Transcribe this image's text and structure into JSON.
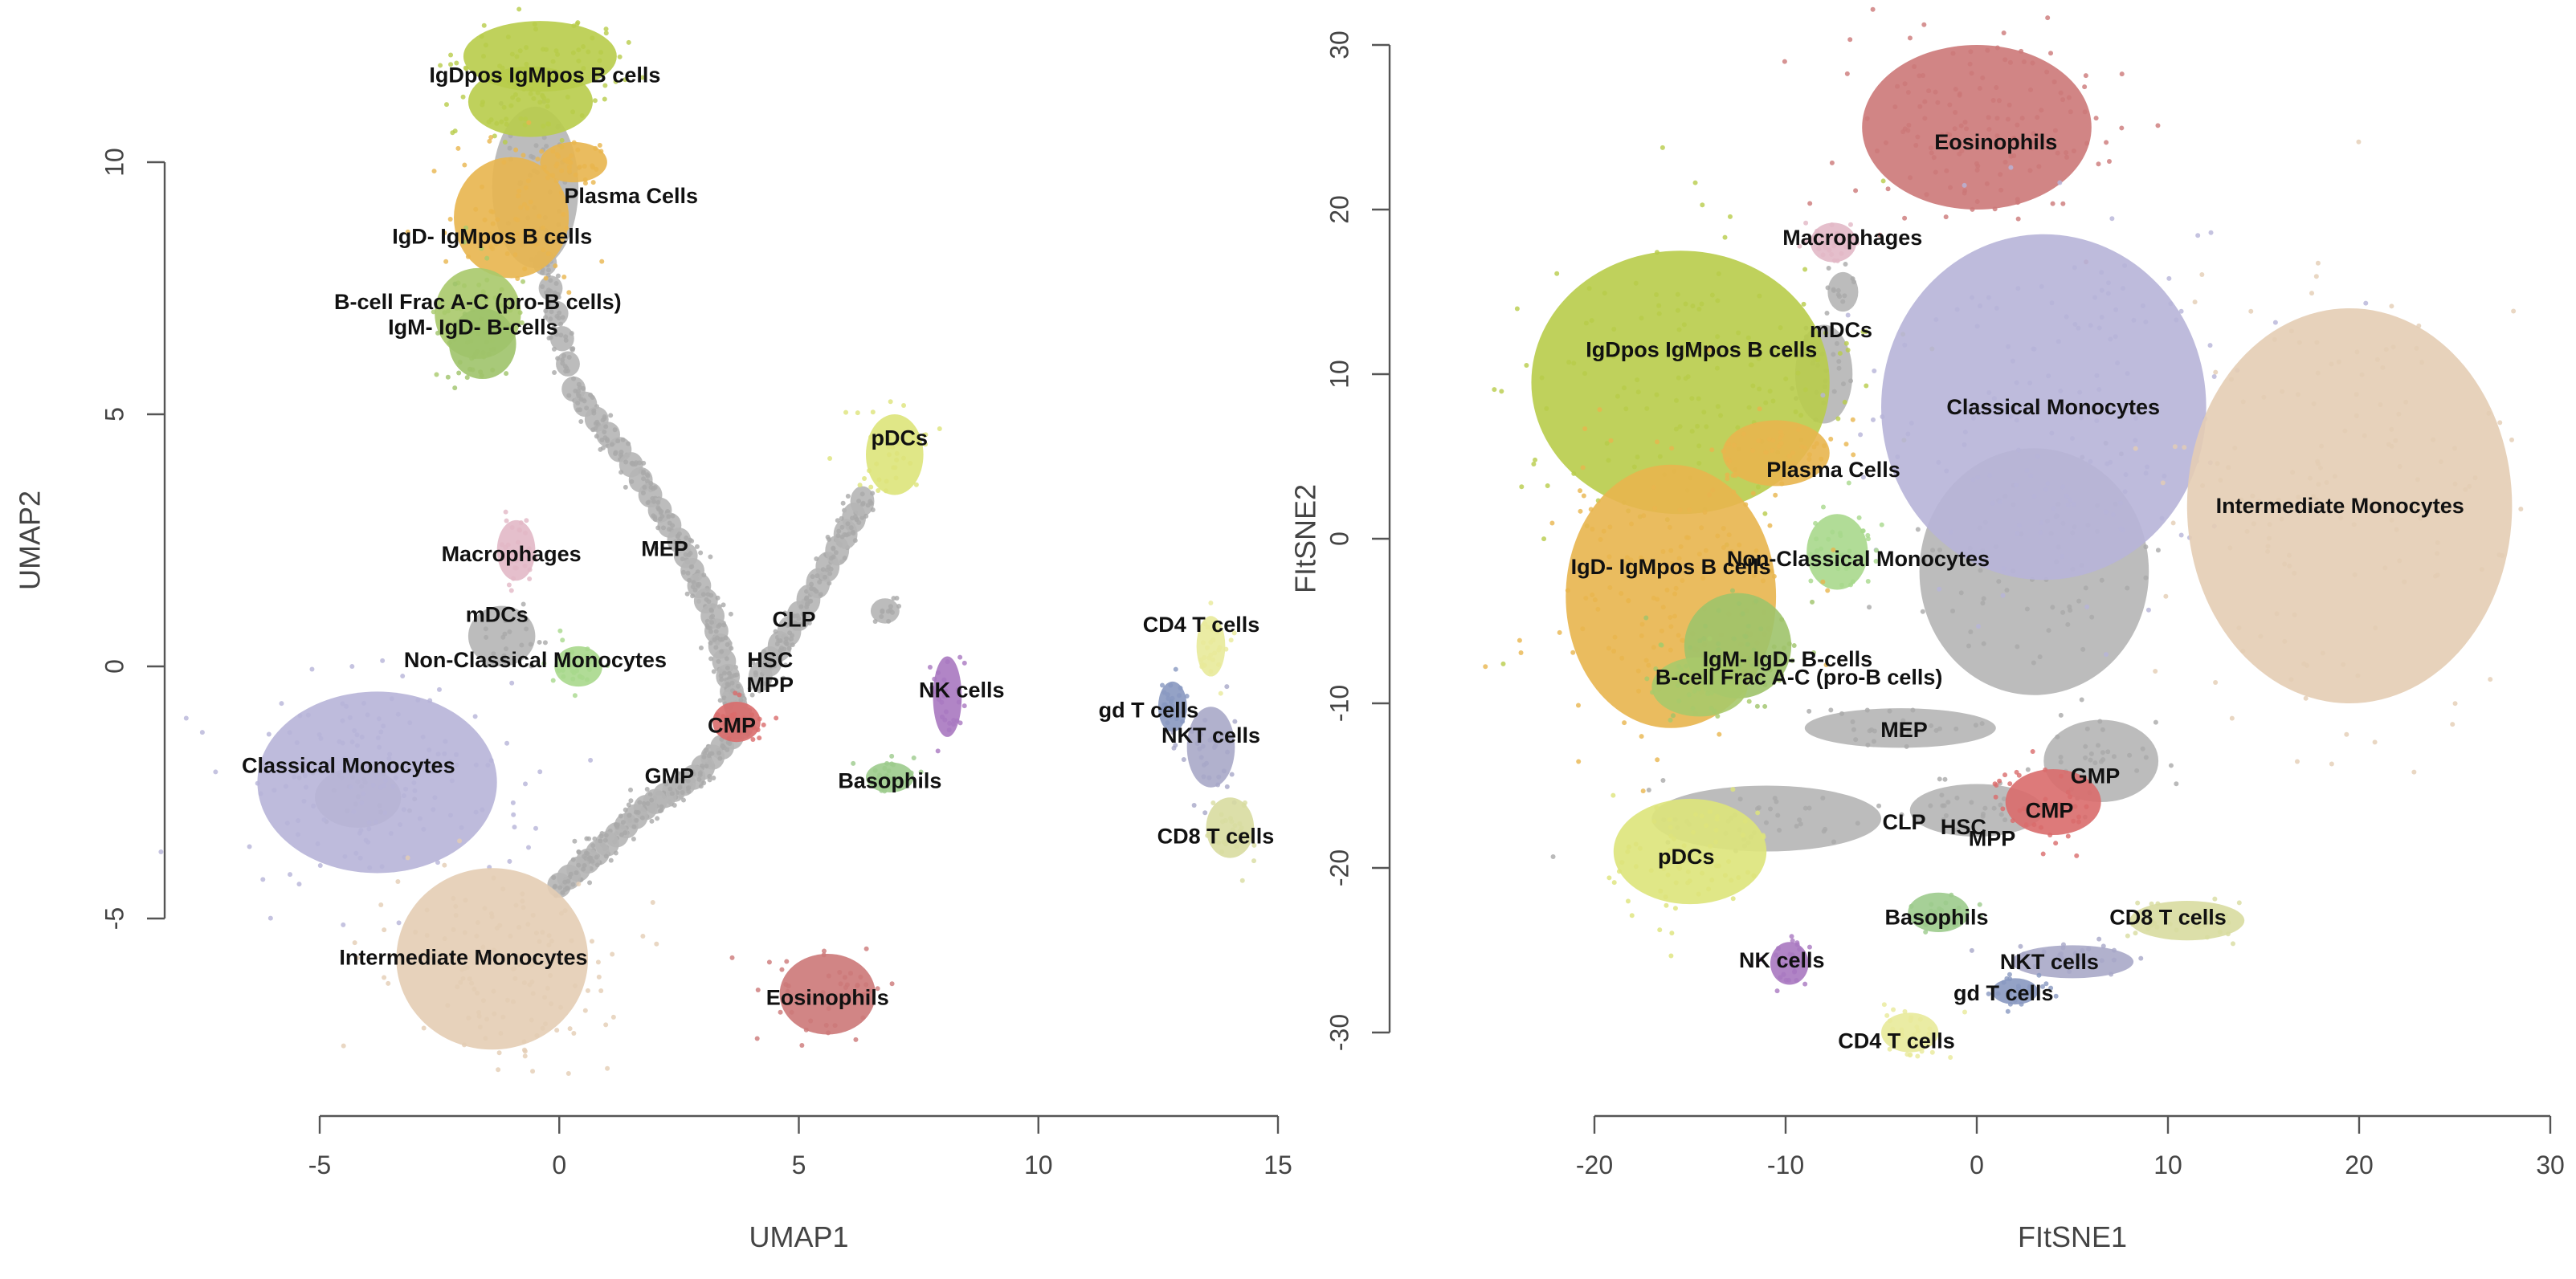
{
  "chart_data": [
    {
      "type": "scatter",
      "title": "",
      "xlabel": "UMAP1",
      "ylabel": "UMAP2",
      "xlim": [
        -5,
        15
      ],
      "ylim": [
        -5,
        10
      ],
      "xticks": [
        -5,
        0,
        5,
        10,
        15
      ],
      "yticks": [
        -5,
        0,
        5,
        10
      ],
      "xtick_labels": [
        "-5",
        "0",
        "5",
        "10",
        "15"
      ],
      "ytick_labels": [
        "-5",
        "0",
        "5",
        "10"
      ],
      "grid": false,
      "legend": "none",
      "clusters": [
        {
          "name": "IgDpos IgMpos B cells",
          "label_x": -0.3,
          "label_y": 11.7,
          "color": "#b8cc4a",
          "blobs": [
            {
              "x": -0.4,
              "y": 12.1,
              "rx": 1.6,
              "ry": 0.7
            },
            {
              "x": -0.6,
              "y": 11.2,
              "rx": 1.3,
              "ry": 0.7
            }
          ]
        },
        {
          "name": "Plasma Cells",
          "label_x": 1.5,
          "label_y": 9.3,
          "color": "#e8b54e",
          "blobs": [
            {
              "x": 0.3,
              "y": 10.0,
              "rx": 0.7,
              "ry": 0.4
            }
          ]
        },
        {
          "name": "IgD- IgMpos B cells",
          "label_x": -1.4,
          "label_y": 8.5,
          "color": "#e8b54e",
          "blobs": [
            {
              "x": -1.0,
              "y": 8.9,
              "rx": 1.2,
              "ry": 1.2
            }
          ]
        },
        {
          "name": "B-cell Frac A-C (pro-B cells)",
          "label_x": -1.7,
          "label_y": 7.2,
          "color": "#a8c96a",
          "blobs": [
            {
              "x": -1.7,
              "y": 7.0,
              "rx": 0.9,
              "ry": 0.9
            }
          ]
        },
        {
          "name": "IgM- IgD- B-cells",
          "label_x": -1.8,
          "label_y": 6.7,
          "color": "#9fc36a",
          "blobs": [
            {
              "x": -1.6,
              "y": 6.4,
              "rx": 0.7,
              "ry": 0.7
            }
          ]
        },
        {
          "name": "pDCs",
          "label_x": 7.1,
          "label_y": 4.5,
          "color": "#dde47a",
          "blobs": [
            {
              "x": 7.0,
              "y": 4.2,
              "rx": 0.6,
              "ry": 0.8
            }
          ]
        },
        {
          "name": "MEP",
          "label_x": 2.2,
          "label_y": 2.3,
          "color": "#b0b0b0",
          "blobs": []
        },
        {
          "name": "Macrophages",
          "label_x": -1.0,
          "label_y": 2.2,
          "color": "#e2b8c6",
          "blobs": [
            {
              "x": -0.9,
              "y": 2.3,
              "rx": 0.4,
              "ry": 0.6
            }
          ]
        },
        {
          "name": "mDCs",
          "label_x": -1.3,
          "label_y": 1.0,
          "color": "#b0b0b0",
          "blobs": []
        },
        {
          "name": "Non-Classical Monocytes",
          "label_x": -0.5,
          "label_y": 0.1,
          "color": "#a8d88c",
          "blobs": [
            {
              "x": 0.4,
              "y": 0.0,
              "rx": 0.5,
              "ry": 0.4
            }
          ]
        },
        {
          "name": "CLP",
          "label_x": 4.9,
          "label_y": 0.9,
          "color": "#b0b0b0",
          "blobs": []
        },
        {
          "name": "HSC",
          "label_x": 4.4,
          "label_y": 0.1,
          "color": "#b0b0b0",
          "blobs": []
        },
        {
          "name": "MPP",
          "label_x": 4.4,
          "label_y": -0.4,
          "color": "#b0b0b0",
          "blobs": []
        },
        {
          "name": "CMP",
          "label_x": 3.6,
          "label_y": -1.2,
          "color": "#d96b6b",
          "blobs": [
            {
              "x": 3.7,
              "y": -1.1,
              "rx": 0.5,
              "ry": 0.4
            }
          ]
        },
        {
          "name": "NK cells",
          "label_x": 8.4,
          "label_y": -0.5,
          "color": "#a978c0",
          "blobs": [
            {
              "x": 8.1,
              "y": -0.6,
              "rx": 0.3,
              "ry": 0.8
            }
          ]
        },
        {
          "name": "CD4 T cells",
          "label_x": 13.4,
          "label_y": 0.8,
          "color": "#e8ea9a",
          "blobs": [
            {
              "x": 13.6,
              "y": 0.4,
              "rx": 0.3,
              "ry": 0.6
            }
          ]
        },
        {
          "name": "gd T cells",
          "label_x": 12.3,
          "label_y": -0.9,
          "color": "#8898c0",
          "blobs": [
            {
              "x": 12.8,
              "y": -0.8,
              "rx": 0.3,
              "ry": 0.5
            }
          ]
        },
        {
          "name": "NKT cells",
          "label_x": 13.6,
          "label_y": -1.4,
          "color": "#a8a8c8",
          "blobs": [
            {
              "x": 13.6,
              "y": -1.6,
              "rx": 0.5,
              "ry": 0.8
            }
          ]
        },
        {
          "name": "CD8 T cells",
          "label_x": 13.7,
          "label_y": -3.4,
          "color": "#d8dca0",
          "blobs": [
            {
              "x": 14.0,
              "y": -3.2,
              "rx": 0.5,
              "ry": 0.6
            }
          ]
        },
        {
          "name": "Classical Monocytes",
          "label_x": -4.4,
          "label_y": -2.0,
          "color": "#b7b4d8",
          "blobs": [
            {
              "x": -3.8,
              "y": -2.3,
              "rx": 2.5,
              "ry": 1.8
            }
          ]
        },
        {
          "name": "GMP",
          "label_x": 2.3,
          "label_y": -2.2,
          "color": "#b0b0b0",
          "blobs": []
        },
        {
          "name": "Basophils",
          "label_x": 6.9,
          "label_y": -2.3,
          "color": "#9ccb8c",
          "blobs": [
            {
              "x": 6.9,
              "y": -2.2,
              "rx": 0.5,
              "ry": 0.3
            }
          ]
        },
        {
          "name": "Intermediate Monocytes",
          "label_x": -2.0,
          "label_y": -5.8,
          "color": "#e4cdb4",
          "blobs": [
            {
              "x": -1.4,
              "y": -5.8,
              "rx": 2.0,
              "ry": 1.8
            }
          ]
        },
        {
          "name": "Eosinophils",
          "label_x": 5.6,
          "label_y": -6.6,
          "color": "#cc7878",
          "blobs": [
            {
              "x": 5.6,
              "y": -6.5,
              "rx": 1.0,
              "ry": 0.8
            }
          ]
        }
      ]
    },
    {
      "type": "scatter",
      "title": "",
      "xlabel": "FItSNE1",
      "ylabel": "FItSNE2",
      "xlim": [
        -20,
        30
      ],
      "ylim": [
        -30,
        30
      ],
      "xticks": [
        -20,
        -10,
        0,
        10,
        20,
        30
      ],
      "yticks": [
        -30,
        -20,
        -10,
        0,
        10,
        20,
        30
      ],
      "xtick_labels": [
        "-20",
        "-10",
        "0",
        "10",
        "20",
        "30"
      ],
      "ytick_labels": [
        "-30",
        "-20",
        "-10",
        "0",
        "10",
        "20",
        "30"
      ],
      "grid": false,
      "legend": "none",
      "clusters": [
        {
          "name": "Eosinophils",
          "label_x": 1.0,
          "label_y": 24.0,
          "color": "#cc7878",
          "blobs": [
            {
              "x": 0.0,
              "y": 25.0,
              "rx": 6.0,
              "ry": 5.0
            }
          ]
        },
        {
          "name": "Macrophages",
          "label_x": -6.5,
          "label_y": 18.2,
          "color": "#e2b8c6",
          "blobs": [
            {
              "x": -7.5,
              "y": 18.0,
              "rx": 1.2,
              "ry": 1.2
            }
          ]
        },
        {
          "name": "mDCs",
          "label_x": -7.1,
          "label_y": 12.6,
          "color": "#b0b0b0",
          "blobs": []
        },
        {
          "name": "IgDpos IgMpos B cells",
          "label_x": -14.4,
          "label_y": 11.4,
          "color": "#b8cc4a",
          "blobs": [
            {
              "x": -15.5,
              "y": 9.5,
              "rx": 7.8,
              "ry": 8.0
            }
          ]
        },
        {
          "name": "Classical Monocytes",
          "label_x": 4.0,
          "label_y": 7.9,
          "color": "#b7b4d8",
          "blobs": [
            {
              "x": 3.5,
              "y": 8.0,
              "rx": 8.5,
              "ry": 10.5
            }
          ]
        },
        {
          "name": "Plasma Cells",
          "label_x": -7.5,
          "label_y": 4.1,
          "color": "#e8b54e",
          "blobs": [
            {
              "x": -10.5,
              "y": 5.2,
              "rx": 2.8,
              "ry": 2.0
            }
          ]
        },
        {
          "name": "Intermediate Monocytes",
          "label_x": 19.0,
          "label_y": 1.9,
          "color": "#e4cdb4",
          "blobs": [
            {
              "x": 19.5,
              "y": 2.0,
              "rx": 8.5,
              "ry": 12.0
            }
          ]
        },
        {
          "name": "Non-Classical Monocytes",
          "label_x": -6.2,
          "label_y": -1.3,
          "color": "#a8d88c",
          "blobs": [
            {
              "x": -7.3,
              "y": -0.8,
              "rx": 1.6,
              "ry": 2.3
            }
          ]
        },
        {
          "name": "IgD- IgMpos B cells",
          "label_x": -16.0,
          "label_y": -1.8,
          "color": "#e8b54e",
          "blobs": [
            {
              "x": -16.0,
              "y": -3.5,
              "rx": 5.5,
              "ry": 8.0
            }
          ]
        },
        {
          "name": "IgM- IgD- B-cells",
          "label_x": -9.9,
          "label_y": -7.4,
          "color": "#9fc36a",
          "blobs": [
            {
              "x": -12.5,
              "y": -6.5,
              "rx": 2.8,
              "ry": 3.2
            }
          ]
        },
        {
          "name": "B-cell Frac A-C (pro-B cells)",
          "label_x": -9.3,
          "label_y": -8.5,
          "color": "#a8c96a",
          "blobs": [
            {
              "x": -14.5,
              "y": -9.0,
              "rx": 2.5,
              "ry": 1.8
            }
          ]
        },
        {
          "name": "MEP",
          "label_x": -3.8,
          "label_y": -11.7,
          "color": "#b0b0b0",
          "blobs": []
        },
        {
          "name": "GMP",
          "label_x": 6.2,
          "label_y": -14.5,
          "color": "#b0b0b0",
          "blobs": []
        },
        {
          "name": "CMP",
          "label_x": 3.8,
          "label_y": -16.6,
          "color": "#d96b6b",
          "blobs": [
            {
              "x": 4.0,
              "y": -16.0,
              "rx": 2.5,
              "ry": 2.0
            }
          ]
        },
        {
          "name": "CLP",
          "label_x": -3.8,
          "label_y": -17.3,
          "color": "#b0b0b0",
          "blobs": []
        },
        {
          "name": "HSC",
          "label_x": -0.7,
          "label_y": -17.6,
          "color": "#b0b0b0",
          "blobs": []
        },
        {
          "name": "MPP",
          "label_x": 0.8,
          "label_y": -18.3,
          "color": "#b0b0b0",
          "blobs": []
        },
        {
          "name": "pDCs",
          "label_x": -15.2,
          "label_y": -19.4,
          "color": "#dde47a",
          "blobs": [
            {
              "x": -15.0,
              "y": -19.0,
              "rx": 4.0,
              "ry": 3.2
            }
          ]
        },
        {
          "name": "Basophils",
          "label_x": -2.1,
          "label_y": -23.1,
          "color": "#9ccb8c",
          "blobs": [
            {
              "x": -2.0,
              "y": -22.7,
              "rx": 1.6,
              "ry": 1.2
            }
          ]
        },
        {
          "name": "CD8 T cells",
          "label_x": 10.0,
          "label_y": -23.1,
          "color": "#d8dca0",
          "blobs": [
            {
              "x": 11.0,
              "y": -23.2,
              "rx": 3.0,
              "ry": 1.2
            }
          ]
        },
        {
          "name": "NK cells",
          "label_x": -10.2,
          "label_y": -25.7,
          "color": "#a978c0",
          "blobs": [
            {
              "x": -9.8,
              "y": -25.8,
              "rx": 1.0,
              "ry": 1.3
            }
          ]
        },
        {
          "name": "NKT cells",
          "label_x": 3.8,
          "label_y": -25.8,
          "color": "#a8a8c8",
          "blobs": [
            {
              "x": 5.0,
              "y": -25.7,
              "rx": 3.2,
              "ry": 1.0
            }
          ]
        },
        {
          "name": "gd T cells",
          "label_x": 1.4,
          "label_y": -27.7,
          "color": "#8898c0",
          "blobs": [
            {
              "x": 2.0,
              "y": -27.5,
              "rx": 1.2,
              "ry": 0.8
            }
          ]
        },
        {
          "name": "CD4 T cells",
          "label_x": -4.2,
          "label_y": -30.6,
          "color": "#e8ea9a",
          "blobs": [
            {
              "x": -3.5,
              "y": -30.0,
              "rx": 1.5,
              "ry": 1.2
            }
          ]
        }
      ],
      "gray_regions": [
        {
          "x": 3.0,
          "y": -2.0,
          "rx": 6.0,
          "ry": 7.5
        },
        {
          "x": -8.0,
          "y": 10.0,
          "rx": 1.5,
          "ry": 3.0
        },
        {
          "x": -7.0,
          "y": 15.0,
          "rx": 0.8,
          "ry": 1.2
        },
        {
          "x": -11.0,
          "y": -17.0,
          "rx": 6.0,
          "ry": 2.0
        },
        {
          "x": -4.0,
          "y": -11.5,
          "rx": 5.0,
          "ry": 1.2
        },
        {
          "x": 0.0,
          "y": -16.5,
          "rx": 3.5,
          "ry": 1.6
        },
        {
          "x": 6.5,
          "y": -13.5,
          "rx": 3.0,
          "ry": 2.5
        }
      ]
    }
  ]
}
